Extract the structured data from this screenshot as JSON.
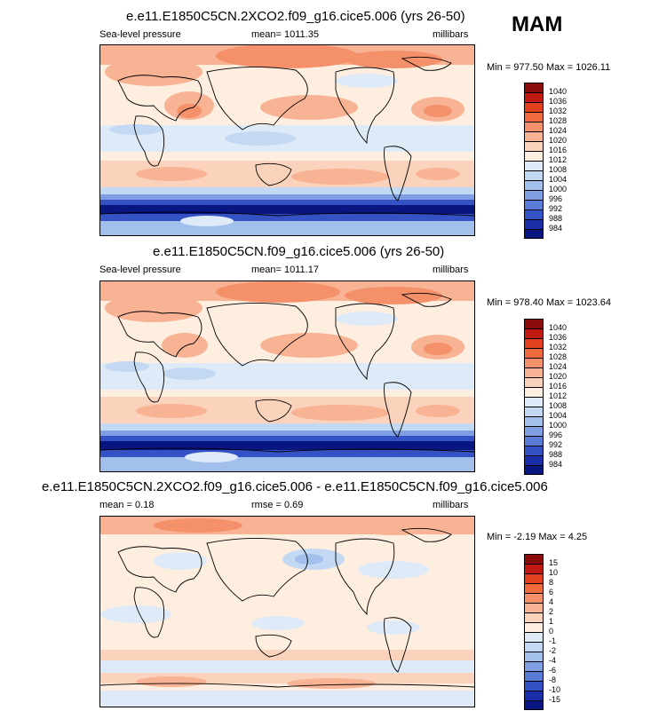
{
  "season": "MAM",
  "panels": [
    {
      "title": "e.e11.E1850C5CN.2XCO2.f09_g16.cice5.006 (yrs 26-50)",
      "left_label": "Sea-level pressure",
      "center_label": "mean= 1011.35",
      "right_label": "millibars",
      "minmax": "Min = 977.50 Max = 1026.11"
    },
    {
      "title": "e.e11.E1850C5CN.f09_g16.cice5.006 (yrs 26-50)",
      "left_label": "Sea-level pressure",
      "center_label": "mean= 1011.17",
      "right_label": "millibars",
      "minmax": "Min = 978.40 Max = 1023.64"
    },
    {
      "title": "e.e11.E1850C5CN.2XCO2.f09_g16.cice5.006 - e.e11.E1850C5CN.f09_g16.cice5.006",
      "left_label": "mean =   0.18",
      "center_label": "rmse =   0.69",
      "right_label": "millibars",
      "minmax": "Min =  -2.19 Max =   4.25"
    }
  ],
  "colorbars": {
    "abs": {
      "labels": [
        "1040",
        "1036",
        "1032",
        "1028",
        "1024",
        "1020",
        "1016",
        "1012",
        "1008",
        "1004",
        "1000",
        "996",
        "992",
        "988",
        "984"
      ],
      "colors": [
        "#8c0c0c",
        "#c21a12",
        "#e2401e",
        "#ef6a3c",
        "#f4906a",
        "#f8b394",
        "#fbd3bc",
        "#fdeee0",
        "#dfeaf8",
        "#c3d8f3",
        "#a3c0ec",
        "#7f9fe2",
        "#5a7bd6",
        "#3552c4",
        "#1a2ea8",
        "#0a1680"
      ]
    },
    "diff": {
      "labels": [
        "15",
        "10",
        "8",
        "6",
        "4",
        "2",
        "1",
        "0",
        "-1",
        "-2",
        "-4",
        "-6",
        "-8",
        "-10",
        "-15"
      ],
      "colors": [
        "#8c0c0c",
        "#c21a12",
        "#e2401e",
        "#ef6a3c",
        "#f4906a",
        "#f8b394",
        "#fbd3bc",
        "#fdeee0",
        "#dfeaf8",
        "#c3d8f3",
        "#a3c0ec",
        "#7f9fe2",
        "#5a7bd6",
        "#3552c4",
        "#1a2ea8",
        "#0a1680"
      ]
    }
  }
}
